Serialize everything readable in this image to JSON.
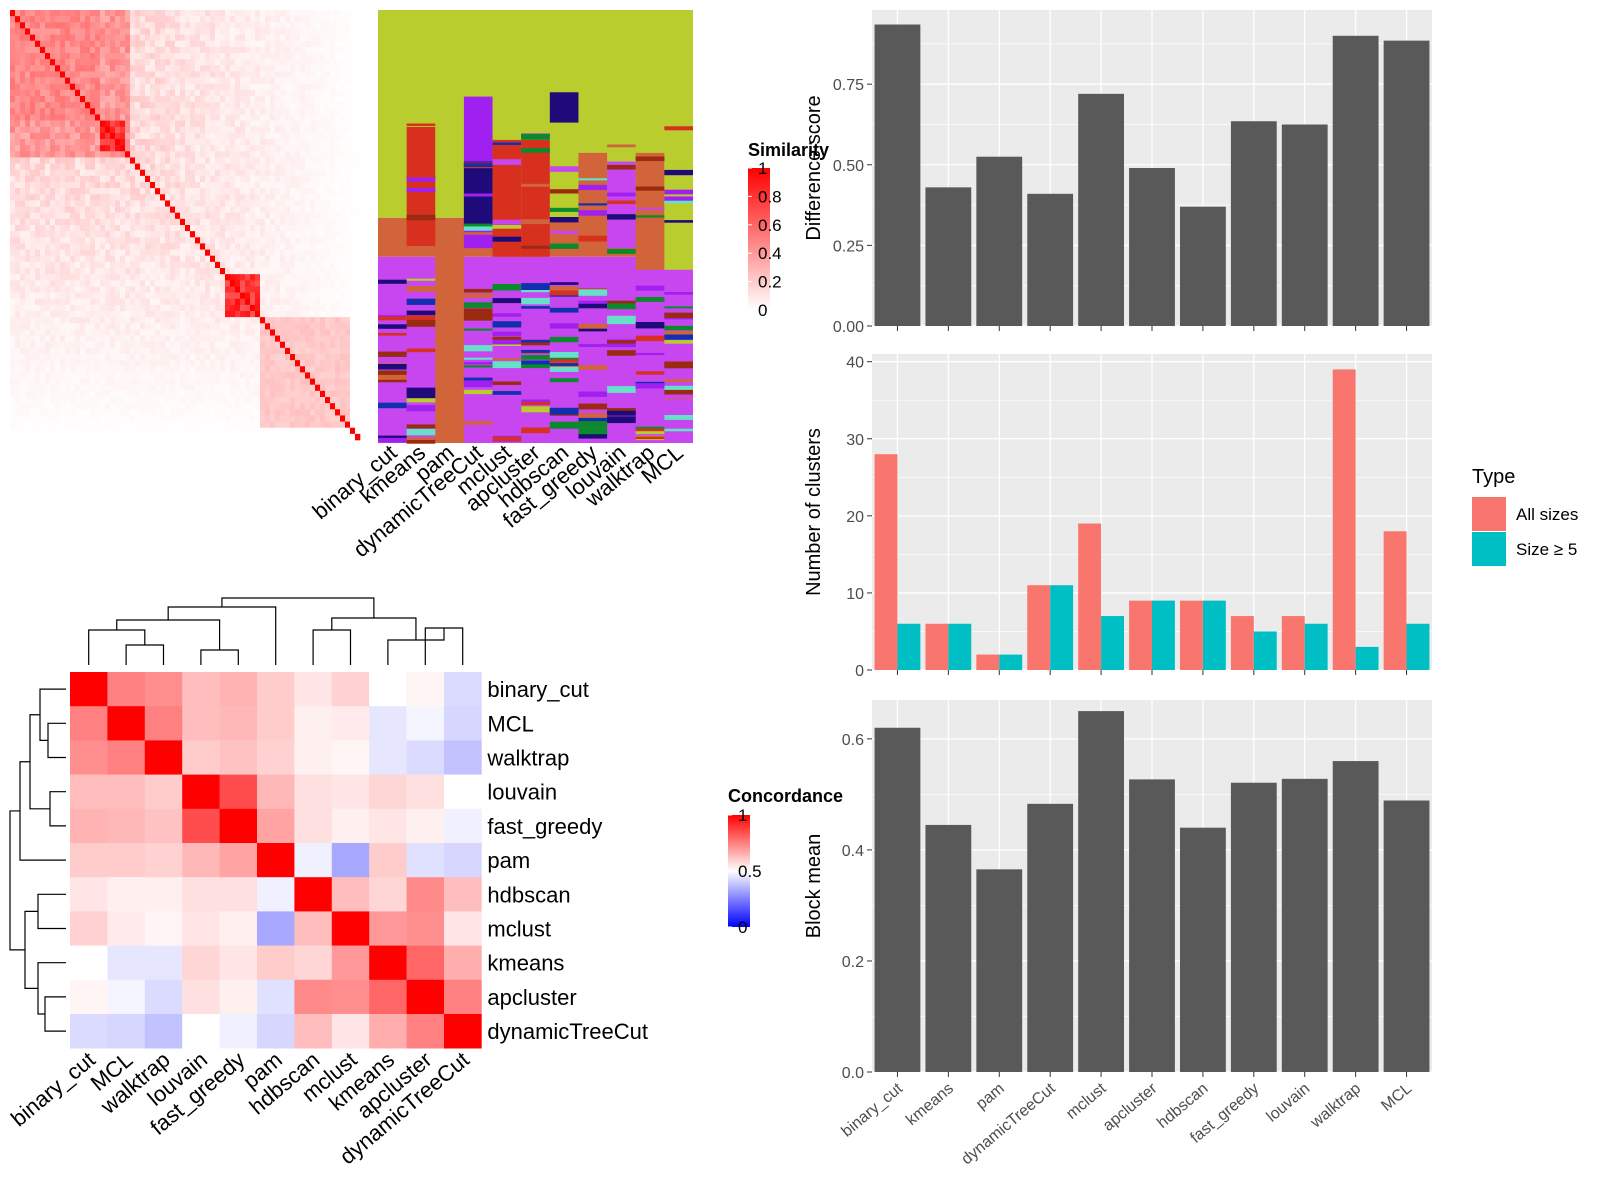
{
  "chart_data": [
    {
      "type": "heatmap",
      "name": "similarity-heatmap",
      "legend_title": "Similarity",
      "legend_ticks": [
        "1",
        "0.8",
        "0.6",
        "0.4",
        "0.2",
        "0"
      ],
      "colors": {
        "high": "#ff0000",
        "low": "#ffffff"
      },
      "blocks": [
        {
          "start": 0,
          "end": 0.26,
          "value": 0.55
        },
        {
          "start": 0.26,
          "end": 0.33,
          "value": 0.95
        },
        {
          "start": 0.62,
          "end": 0.72,
          "value": 0.95
        },
        {
          "start": 0.72,
          "end": 0.98,
          "value": 0.25
        }
      ]
    },
    {
      "type": "heatmap",
      "name": "cluster-assignment-columns",
      "columns": [
        "binary_cut",
        "kmeans",
        "pam",
        "dynamicTreeCut",
        "mclust",
        "apcluster",
        "hdbscan",
        "fast_greedy",
        "louvain",
        "walktrap",
        "MCL"
      ],
      "palette": [
        "#b9cd2e",
        "#d2643c",
        "#c846f0",
        "#a020f0",
        "#1f0a7a",
        "#d7301f",
        "#0a8a2a",
        "#66e0c8",
        "#9a2a10",
        "#1030b0"
      ]
    },
    {
      "type": "heatmap",
      "name": "concordance-heatmap",
      "legend_title": "Concordance",
      "legend_ticks": [
        "1",
        "0.5",
        "0"
      ],
      "colors": {
        "high": "#ff0000",
        "mid": "#ffffff",
        "low": "#0000ff"
      },
      "row_labels": [
        "binary_cut",
        "MCL",
        "walktrap",
        "louvain",
        "fast_greedy",
        "pam",
        "hdbscan",
        "mclust",
        "kmeans",
        "apcluster",
        "dynamicTreeCut"
      ],
      "col_labels": [
        "binary_cut",
        "MCL",
        "walktrap",
        "louvain",
        "fast_greedy",
        "pam",
        "hdbscan",
        "mclust",
        "kmeans",
        "apcluster",
        "dynamicTreeCut"
      ],
      "values": [
        [
          1.0,
          0.75,
          0.72,
          0.63,
          0.65,
          0.6,
          0.55,
          0.59,
          0.5,
          0.52,
          0.43
        ],
        [
          0.75,
          1.0,
          0.75,
          0.63,
          0.64,
          0.6,
          0.53,
          0.54,
          0.45,
          0.48,
          0.42
        ],
        [
          0.72,
          0.75,
          1.0,
          0.6,
          0.62,
          0.59,
          0.53,
          0.52,
          0.45,
          0.43,
          0.38
        ],
        [
          0.63,
          0.63,
          0.6,
          1.0,
          0.85,
          0.64,
          0.56,
          0.55,
          0.58,
          0.56,
          0.5
        ],
        [
          0.65,
          0.64,
          0.62,
          0.85,
          1.0,
          0.68,
          0.56,
          0.53,
          0.55,
          0.53,
          0.47
        ],
        [
          0.6,
          0.6,
          0.59,
          0.64,
          0.68,
          1.0,
          0.47,
          0.33,
          0.6,
          0.44,
          0.42
        ],
        [
          0.55,
          0.53,
          0.53,
          0.56,
          0.56,
          0.47,
          1.0,
          0.63,
          0.58,
          0.73,
          0.63
        ],
        [
          0.59,
          0.54,
          0.52,
          0.55,
          0.53,
          0.33,
          0.63,
          1.0,
          0.7,
          0.72,
          0.55
        ],
        [
          0.5,
          0.45,
          0.45,
          0.58,
          0.55,
          0.6,
          0.58,
          0.7,
          1.0,
          0.8,
          0.66
        ],
        [
          0.52,
          0.48,
          0.43,
          0.56,
          0.53,
          0.44,
          0.73,
          0.72,
          0.8,
          1.0,
          0.75
        ],
        [
          0.43,
          0.42,
          0.38,
          0.5,
          0.47,
          0.42,
          0.63,
          0.55,
          0.66,
          0.75,
          1.0
        ]
      ]
    },
    {
      "type": "bar",
      "name": "difference-score",
      "categories": [
        "binary_cut",
        "kmeans",
        "pam",
        "dynamicTreeCut",
        "mclust",
        "apcluster",
        "hdbscan",
        "fast_greedy",
        "louvain",
        "walktrap",
        "MCL"
      ],
      "values": [
        0.935,
        0.43,
        0.525,
        0.41,
        0.72,
        0.49,
        0.37,
        0.635,
        0.625,
        0.9,
        0.885
      ],
      "ylabel": "Difference score",
      "yticks": [
        "0.00",
        "0.25",
        "0.50",
        "0.75"
      ],
      "ylim": [
        0,
        0.98
      ],
      "fill": "#595959"
    },
    {
      "type": "bar",
      "name": "number-of-clusters",
      "categories": [
        "binary_cut",
        "kmeans",
        "pam",
        "dynamicTreeCut",
        "mclust",
        "apcluster",
        "hdbscan",
        "fast_greedy",
        "louvain",
        "walktrap",
        "MCL"
      ],
      "series": [
        {
          "name": "All sizes",
          "color": "#f8766d",
          "values": [
            28,
            6,
            2,
            11,
            19,
            9,
            9,
            7,
            7,
            39,
            18
          ]
        },
        {
          "name": "Size ≥ 5",
          "color": "#00bfc4",
          "values": [
            6,
            6,
            2,
            11,
            7,
            9,
            9,
            5,
            6,
            3,
            6
          ]
        }
      ],
      "ylabel": "Number of clusters",
      "yticks": [
        "0",
        "10",
        "20",
        "30",
        "40"
      ],
      "ylim": [
        0,
        41
      ],
      "legend_title": "Type",
      "legend_position": "right"
    },
    {
      "type": "bar",
      "name": "block-mean",
      "categories": [
        "binary_cut",
        "kmeans",
        "pam",
        "dynamicTreeCut",
        "mclust",
        "apcluster",
        "hdbscan",
        "fast_greedy",
        "louvain",
        "walktrap",
        "MCL"
      ],
      "values": [
        0.62,
        0.445,
        0.365,
        0.483,
        0.65,
        0.527,
        0.44,
        0.521,
        0.528,
        0.56,
        0.489
      ],
      "ylabel": "Block mean",
      "yticks": [
        "0.0",
        "0.2",
        "0.4",
        "0.6"
      ],
      "ylim": [
        0,
        0.67
      ],
      "fill": "#595959"
    }
  ]
}
